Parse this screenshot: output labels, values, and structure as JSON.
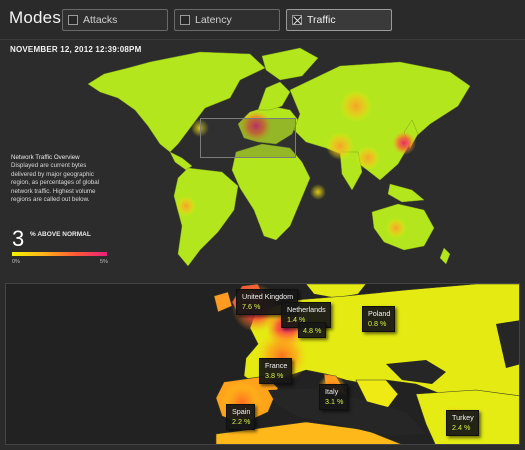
{
  "header": {
    "title": "Modes",
    "modes": [
      {
        "label": "Attacks",
        "checked": false
      },
      {
        "label": "Latency",
        "checked": false
      },
      {
        "label": "Traffic",
        "checked": true
      }
    ]
  },
  "overview": {
    "timestamp": "NOVEMBER 12, 2012 12:39:08PM",
    "info_title": "Network Traffic Overview",
    "info_text": "Displayed are current bytes delivered by major geographic region, as percentages of global network traffic. Highest volume regions are called out below.",
    "above_normal_value": "3",
    "above_normal_label": "% ABOVE NORMAL",
    "scale_min": "0%",
    "scale_max": "5%"
  },
  "callouts": [
    {
      "country": "United Kingdom",
      "value": "7.6 %"
    },
    {
      "country": "Netherlands",
      "value": "1.4 %"
    },
    {
      "country": "",
      "value": "4.8 %"
    },
    {
      "country": "Poland",
      "value": "0.8 %"
    },
    {
      "country": "France",
      "value": "3.8 %"
    },
    {
      "country": "Italy",
      "value": "3.1 %"
    },
    {
      "country": "Spain",
      "value": "2.2 %"
    },
    {
      "country": "Turkey",
      "value": "2.4 %"
    }
  ],
  "colors": {
    "low": "#f2f200",
    "mid": "#ffb21a",
    "high": "#e81f7a",
    "land_base": "#b4e61e",
    "background": "#2b2b2b"
  }
}
